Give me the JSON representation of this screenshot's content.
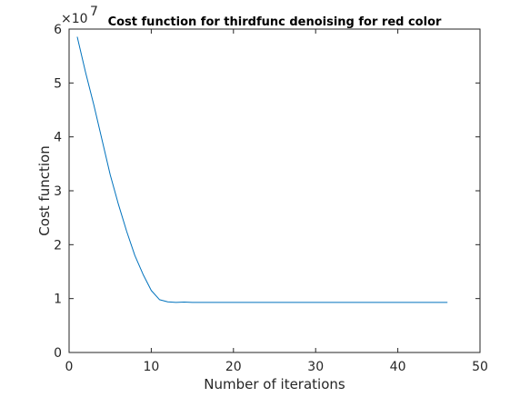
{
  "chart_data": {
    "type": "line",
    "title": "Cost function for thirdfunc denoising for red color",
    "xlabel": "Number of iterations",
    "ylabel": "Cost function",
    "y_exponent_label": "×10",
    "y_exponent_power": "7",
    "xlim": [
      0,
      50
    ],
    "ylim": [
      0,
      6
    ],
    "x_ticks": [
      0,
      10,
      20,
      30,
      40,
      50
    ],
    "y_ticks": [
      0,
      1,
      2,
      3,
      4,
      5,
      6
    ],
    "x_tick_labels": [
      "0",
      "10",
      "20",
      "30",
      "40",
      "50"
    ],
    "y_tick_labels": [
      "0",
      "1",
      "2",
      "3",
      "4",
      "5",
      "6"
    ],
    "grid": false,
    "box": true,
    "series_color": "#0072BD",
    "series": [
      {
        "x": [
          1,
          2,
          3,
          4,
          5,
          6,
          7,
          8,
          9,
          10,
          11,
          12,
          13,
          14,
          15,
          16,
          17,
          18,
          19,
          20,
          21,
          22,
          23,
          24,
          25,
          26,
          27,
          28,
          29,
          30,
          31,
          32,
          33,
          34,
          35,
          36,
          37,
          38,
          39,
          40,
          41,
          42,
          43,
          44,
          45,
          46
        ],
        "values": [
          5.85,
          5.2,
          4.6,
          3.95,
          3.3,
          2.75,
          2.25,
          1.8,
          1.45,
          1.15,
          0.98,
          0.94,
          0.93,
          0.935,
          0.93,
          0.93,
          0.93,
          0.93,
          0.93,
          0.93,
          0.93,
          0.93,
          0.93,
          0.93,
          0.93,
          0.93,
          0.93,
          0.93,
          0.93,
          0.93,
          0.93,
          0.93,
          0.93,
          0.93,
          0.93,
          0.93,
          0.93,
          0.93,
          0.93,
          0.93,
          0.93,
          0.93,
          0.93,
          0.93,
          0.93,
          0.93
        ]
      }
    ]
  }
}
